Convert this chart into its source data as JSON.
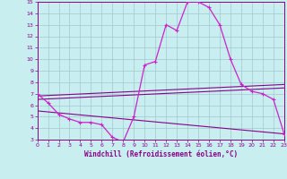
{
  "xlabel": "Windchill (Refroidissement éolien,°C)",
  "xlim": [
    0,
    23
  ],
  "ylim": [
    3,
    15
  ],
  "yticks": [
    3,
    4,
    5,
    6,
    7,
    8,
    9,
    10,
    11,
    12,
    13,
    14,
    15
  ],
  "xticks": [
    0,
    1,
    2,
    3,
    4,
    5,
    6,
    7,
    8,
    9,
    10,
    11,
    12,
    13,
    14,
    15,
    16,
    17,
    18,
    19,
    20,
    21,
    22,
    23
  ],
  "background_color": "#c8eef0",
  "grid_color": "#a0c8cc",
  "line_color": "#880088",
  "line_color2": "#cc22cc",
  "series": {
    "main": {
      "x": [
        0,
        1,
        2,
        3,
        4,
        5,
        6,
        7,
        8,
        9,
        10,
        11,
        12,
        13,
        14,
        15,
        16,
        17,
        18,
        19,
        20,
        21,
        22,
        23
      ],
      "y": [
        7.0,
        6.2,
        5.2,
        4.8,
        4.5,
        4.5,
        4.3,
        3.2,
        2.8,
        5.0,
        9.5,
        9.8,
        13.0,
        12.5,
        15.0,
        15.0,
        14.5,
        13.0,
        10.0,
        7.8,
        7.2,
        7.0,
        6.5,
        3.5
      ]
    },
    "line1": {
      "x": [
        0,
        23
      ],
      "y": [
        6.8,
        7.8
      ]
    },
    "line2": {
      "x": [
        0,
        23
      ],
      "y": [
        6.5,
        7.5
      ]
    },
    "line3": {
      "x": [
        0,
        23
      ],
      "y": [
        5.5,
        3.5
      ]
    }
  }
}
